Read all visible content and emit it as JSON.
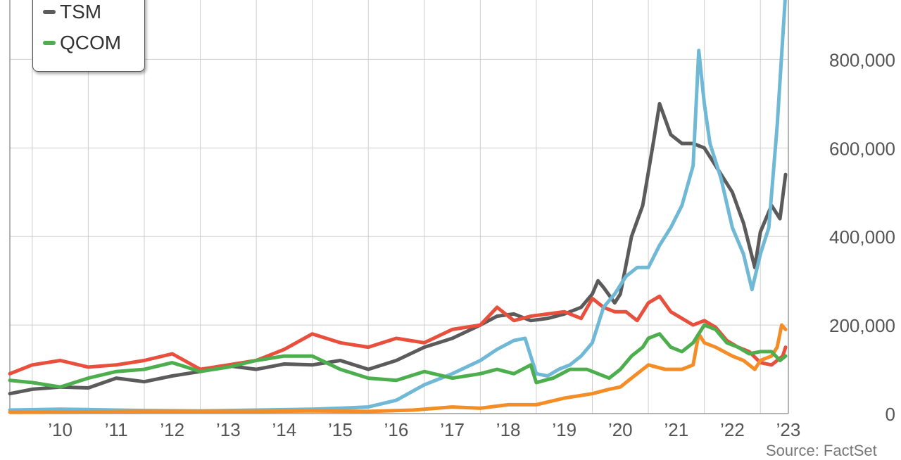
{
  "chart_data": {
    "type": "line",
    "title": "",
    "xlabel": "",
    "ylabel": "",
    "x_ticks": [
      "’10",
      "’11",
      "’12",
      "’13",
      "’14",
      "’15",
      "’16",
      "’17",
      "’18",
      "’19",
      "’20",
      "’21",
      "’22",
      "’23"
    ],
    "y_ticks": [
      {
        "value": 0,
        "label": "0"
      },
      {
        "value": 200000,
        "label": "200,000"
      },
      {
        "value": 400000,
        "label": "400,000"
      },
      {
        "value": 600000,
        "label": "600,000"
      },
      {
        "value": 800000,
        "label": "800,000"
      }
    ],
    "ylim": [
      0,
      950000
    ],
    "xlim": [
      2009.6,
      2023.5
    ],
    "grid": true,
    "y_axis_side": "right",
    "legend": {
      "placement": "top-left",
      "entries": [
        {
          "name": "TSM",
          "color": "#5b5b5b"
        },
        {
          "name": "QCOM",
          "color": "#4cae4c"
        }
      ]
    },
    "source_text": "Source: FactSet",
    "series": [
      {
        "name": "TSM",
        "color": "#5b5b5b",
        "x": [
          2009.6,
          2010.0,
          2010.5,
          2011.0,
          2011.5,
          2012.0,
          2012.5,
          2013.0,
          2013.5,
          2014.0,
          2014.5,
          2015.0,
          2015.5,
          2016.0,
          2016.5,
          2017.0,
          2017.5,
          2018.0,
          2018.3,
          2018.6,
          2018.9,
          2019.2,
          2019.5,
          2019.8,
          2020.0,
          2020.1,
          2020.2,
          2020.4,
          2020.5,
          2020.7,
          2020.9,
          2021.1,
          2021.2,
          2021.4,
          2021.6,
          2021.8,
          2022.0,
          2022.1,
          2022.3,
          2022.5,
          2022.7,
          2022.9,
          2023.0,
          2023.2,
          2023.35,
          2023.45
        ],
        "y": [
          45000,
          55000,
          60000,
          58000,
          80000,
          72000,
          85000,
          95000,
          108000,
          100000,
          112000,
          110000,
          120000,
          100000,
          120000,
          150000,
          170000,
          200000,
          220000,
          225000,
          210000,
          215000,
          225000,
          240000,
          270000,
          300000,
          285000,
          250000,
          270000,
          400000,
          470000,
          620000,
          700000,
          630000,
          610000,
          610000,
          600000,
          580000,
          540000,
          500000,
          430000,
          330000,
          410000,
          470000,
          440000,
          540000
        ]
      },
      {
        "name": "",
        "color": "#e84f3c",
        "x": [
          2009.6,
          2010.0,
          2010.5,
          2011.0,
          2011.5,
          2012.0,
          2012.5,
          2013.0,
          2013.5,
          2014.0,
          2014.5,
          2015.0,
          2015.5,
          2016.0,
          2016.5,
          2017.0,
          2017.5,
          2018.0,
          2018.3,
          2018.6,
          2018.9,
          2019.2,
          2019.5,
          2019.8,
          2020.0,
          2020.2,
          2020.4,
          2020.6,
          2020.8,
          2021.0,
          2021.2,
          2021.4,
          2021.6,
          2021.8,
          2022.0,
          2022.2,
          2022.4,
          2022.6,
          2022.8,
          2023.0,
          2023.2,
          2023.4,
          2023.45
        ],
        "y": [
          90000,
          110000,
          120000,
          105000,
          110000,
          120000,
          135000,
          100000,
          110000,
          120000,
          145000,
          180000,
          160000,
          150000,
          170000,
          160000,
          190000,
          200000,
          240000,
          210000,
          220000,
          225000,
          230000,
          215000,
          260000,
          240000,
          230000,
          230000,
          210000,
          250000,
          265000,
          230000,
          215000,
          200000,
          210000,
          195000,
          165000,
          150000,
          140000,
          115000,
          110000,
          130000,
          150000
        ]
      },
      {
        "name": "",
        "color": "#6fb8d6",
        "x": [
          2009.6,
          2010.5,
          2011.0,
          2011.5,
          2012.0,
          2013.0,
          2014.0,
          2015.0,
          2015.5,
          2016.0,
          2016.5,
          2017.0,
          2017.5,
          2018.0,
          2018.3,
          2018.6,
          2018.8,
          2019.0,
          2019.2,
          2019.4,
          2019.6,
          2019.8,
          2020.0,
          2020.2,
          2020.4,
          2020.6,
          2020.8,
          2021.0,
          2021.2,
          2021.4,
          2021.6,
          2021.8,
          2021.9,
          2022.0,
          2022.1,
          2022.3,
          2022.5,
          2022.7,
          2022.85,
          2023.0,
          2023.15,
          2023.3,
          2023.45
        ],
        "y": [
          8000,
          10000,
          9000,
          8000,
          7000,
          6000,
          8000,
          10000,
          12000,
          15000,
          30000,
          65000,
          90000,
          120000,
          145000,
          165000,
          170000,
          90000,
          85000,
          100000,
          110000,
          130000,
          160000,
          240000,
          270000,
          310000,
          330000,
          330000,
          380000,
          420000,
          470000,
          560000,
          820000,
          700000,
          610000,
          530000,
          420000,
          360000,
          280000,
          360000,
          420000,
          650000,
          950000
        ]
      },
      {
        "name": "",
        "color": "#f58d27",
        "x": [
          2009.6,
          2011.0,
          2012.0,
          2013.0,
          2014.0,
          2015.0,
          2016.0,
          2016.8,
          2017.0,
          2017.5,
          2018.0,
          2018.5,
          2019.0,
          2019.5,
          2020.0,
          2020.3,
          2020.5,
          2020.8,
          2021.0,
          2021.3,
          2021.6,
          2021.8,
          2021.9,
          2022.0,
          2022.2,
          2022.5,
          2022.7,
          2022.9,
          2023.0,
          2023.2,
          2023.3,
          2023.38,
          2023.45
        ],
        "y": [
          3000,
          4000,
          5000,
          5000,
          5000,
          6000,
          5000,
          8000,
          10000,
          15000,
          12000,
          20000,
          20000,
          35000,
          45000,
          55000,
          60000,
          90000,
          110000,
          100000,
          100000,
          110000,
          180000,
          160000,
          150000,
          130000,
          120000,
          100000,
          120000,
          130000,
          150000,
          200000,
          190000
        ]
      },
      {
        "name": "QCOM",
        "color": "#4cae4c",
        "x": [
          2009.6,
          2010.0,
          2010.5,
          2011.0,
          2011.5,
          2012.0,
          2012.5,
          2013.0,
          2013.5,
          2014.0,
          2014.5,
          2015.0,
          2015.5,
          2016.0,
          2016.5,
          2017.0,
          2017.5,
          2018.0,
          2018.3,
          2018.6,
          2018.9,
          2019.0,
          2019.3,
          2019.6,
          2019.9,
          2020.1,
          2020.3,
          2020.5,
          2020.7,
          2020.9,
          2021.0,
          2021.2,
          2021.4,
          2021.6,
          2021.8,
          2022.0,
          2022.2,
          2022.4,
          2022.6,
          2022.8,
          2023.0,
          2023.2,
          2023.35,
          2023.45
        ],
        "y": [
          75000,
          70000,
          60000,
          80000,
          95000,
          100000,
          115000,
          95000,
          105000,
          120000,
          130000,
          130000,
          100000,
          80000,
          75000,
          95000,
          80000,
          90000,
          100000,
          90000,
          110000,
          70000,
          80000,
          100000,
          100000,
          90000,
          80000,
          100000,
          130000,
          150000,
          170000,
          180000,
          150000,
          140000,
          160000,
          200000,
          190000,
          160000,
          150000,
          135000,
          140000,
          140000,
          120000,
          130000
        ]
      }
    ]
  }
}
